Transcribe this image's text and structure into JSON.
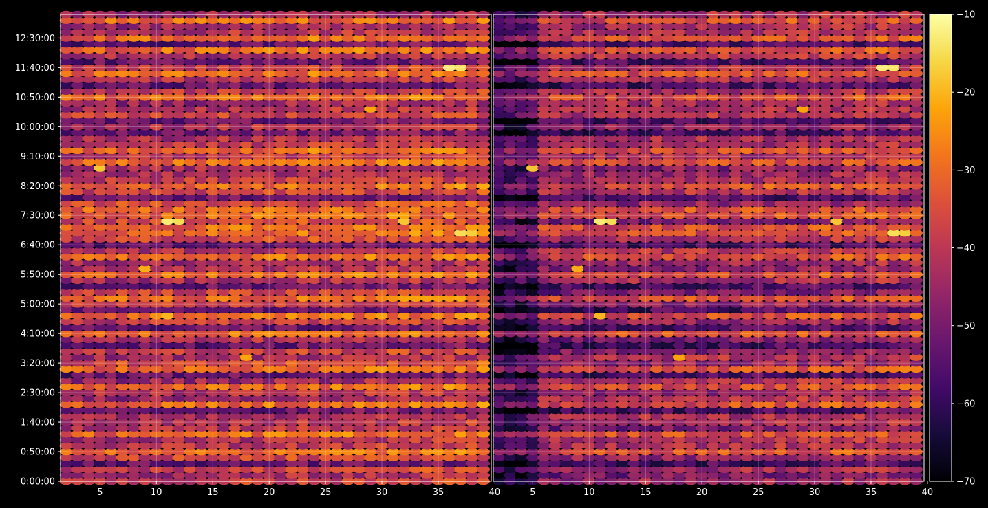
{
  "chart_data": {
    "type": "heatmap",
    "colormap": "inferno",
    "grid": true,
    "background": "#000000",
    "panels": [
      {
        "name": "",
        "xlim": [
          1.5,
          39.7
        ],
        "xticks": [
          5,
          10,
          15,
          20,
          25,
          30,
          35,
          40
        ],
        "xtick_labels": [
          "5",
          "10",
          "15",
          "20",
          "25",
          "30",
          "35",
          "40"
        ],
        "channels": [
          2,
          39
        ],
        "base_level": -40,
        "left_dim": false
      },
      {
        "name": "",
        "xlim": [
          1.5,
          39.7
        ],
        "xticks": [
          5,
          10,
          15,
          20,
          25,
          30,
          35,
          40
        ],
        "xtick_labels": [
          "5",
          "10",
          "15",
          "20",
          "25",
          "30",
          "35",
          "40"
        ],
        "channels": [
          2,
          39
        ],
        "base_level": -45,
        "left_dim": true
      }
    ],
    "y_axis": {
      "unit": "time",
      "ylim_seconds": [
        0,
        47400
      ],
      "ytick_seconds": [
        0,
        3000,
        6000,
        9000,
        12000,
        15000,
        18000,
        21000,
        24000,
        27000,
        30000,
        33000,
        36000,
        39000,
        42000,
        45000
      ],
      "ytick_labels": [
        "0:00:00",
        "0:50:00",
        "1:40:00",
        "2:30:00",
        "3:20:00",
        "4:10:00",
        "5:00:00",
        "5:50:00",
        "6:40:00",
        "7:30:00",
        "8:20:00",
        "9:10:00",
        "10:00:00",
        "10:50:00",
        "11:40:00",
        "12:30:00"
      ],
      "row_interval_seconds": 600
    },
    "colorbar": {
      "min": -70,
      "max": -10,
      "ticks": [
        -70,
        -60,
        -50,
        -40,
        -30,
        -20,
        -10
      ],
      "tick_labels": [
        "−70",
        "−60",
        "−50",
        "−40",
        "−30",
        "−20",
        "−10"
      ]
    },
    "bright_rows_seconds": [
      3000,
      4800,
      7800,
      9600,
      11400,
      15000,
      16800,
      18600,
      21000,
      22800,
      25200,
      25800,
      27000,
      27600,
      30000,
      32400,
      33600,
      39000,
      41400,
      43800,
      45000,
      46800
    ],
    "dark_rows_seconds": [
      1800,
      7200,
      10800,
      13800,
      15600,
      17400,
      19800,
      24000,
      28800,
      32400,
      35400,
      36600,
      40200,
      42600,
      44400
    ],
    "hotspots": [
      {
        "ch": 11,
        "t": 26400,
        "v": -13
      },
      {
        "ch": 12,
        "t": 26400,
        "v": -15
      },
      {
        "ch": 36,
        "t": 42000,
        "v": -13
      },
      {
        "ch": 37,
        "t": 42000,
        "v": -14
      },
      {
        "ch": 37,
        "t": 25200,
        "v": -15
      },
      {
        "ch": 38,
        "t": 25200,
        "v": -17
      },
      {
        "ch": 5,
        "t": 31800,
        "v": -18
      },
      {
        "ch": 32,
        "t": 26400,
        "v": -18
      },
      {
        "ch": 11,
        "t": 16800,
        "v": -20
      },
      {
        "ch": 9,
        "t": 21600,
        "v": -21
      },
      {
        "ch": 18,
        "t": 12600,
        "v": -22
      },
      {
        "ch": 29,
        "t": 37800,
        "v": -22
      }
    ]
  }
}
